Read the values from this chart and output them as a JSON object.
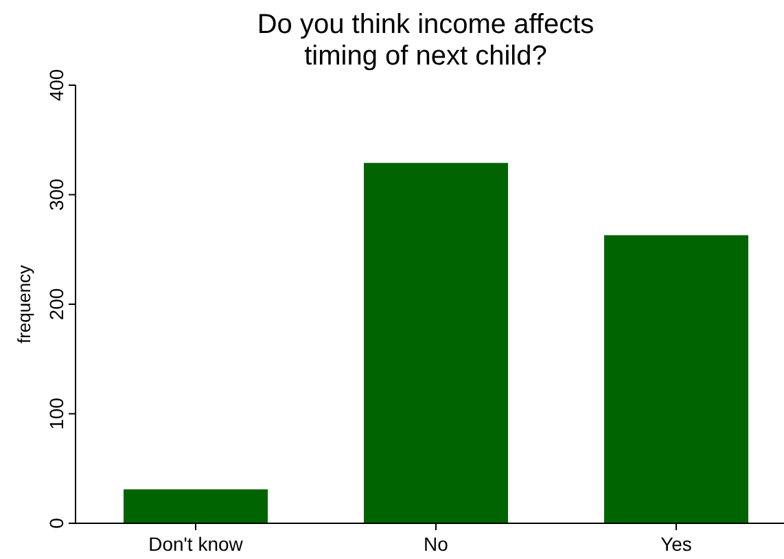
{
  "chart_data": {
    "type": "bar",
    "title": "Do you think income affects\ntiming of next child?",
    "ylabel": "frequency",
    "categories": [
      "Don't know",
      "No",
      "Yes"
    ],
    "values": [
      31,
      329,
      263
    ],
    "color": "#006400",
    "ylim": [
      0,
      400
    ],
    "yticks": [
      0,
      100,
      200,
      300,
      400
    ],
    "grid": false
  }
}
